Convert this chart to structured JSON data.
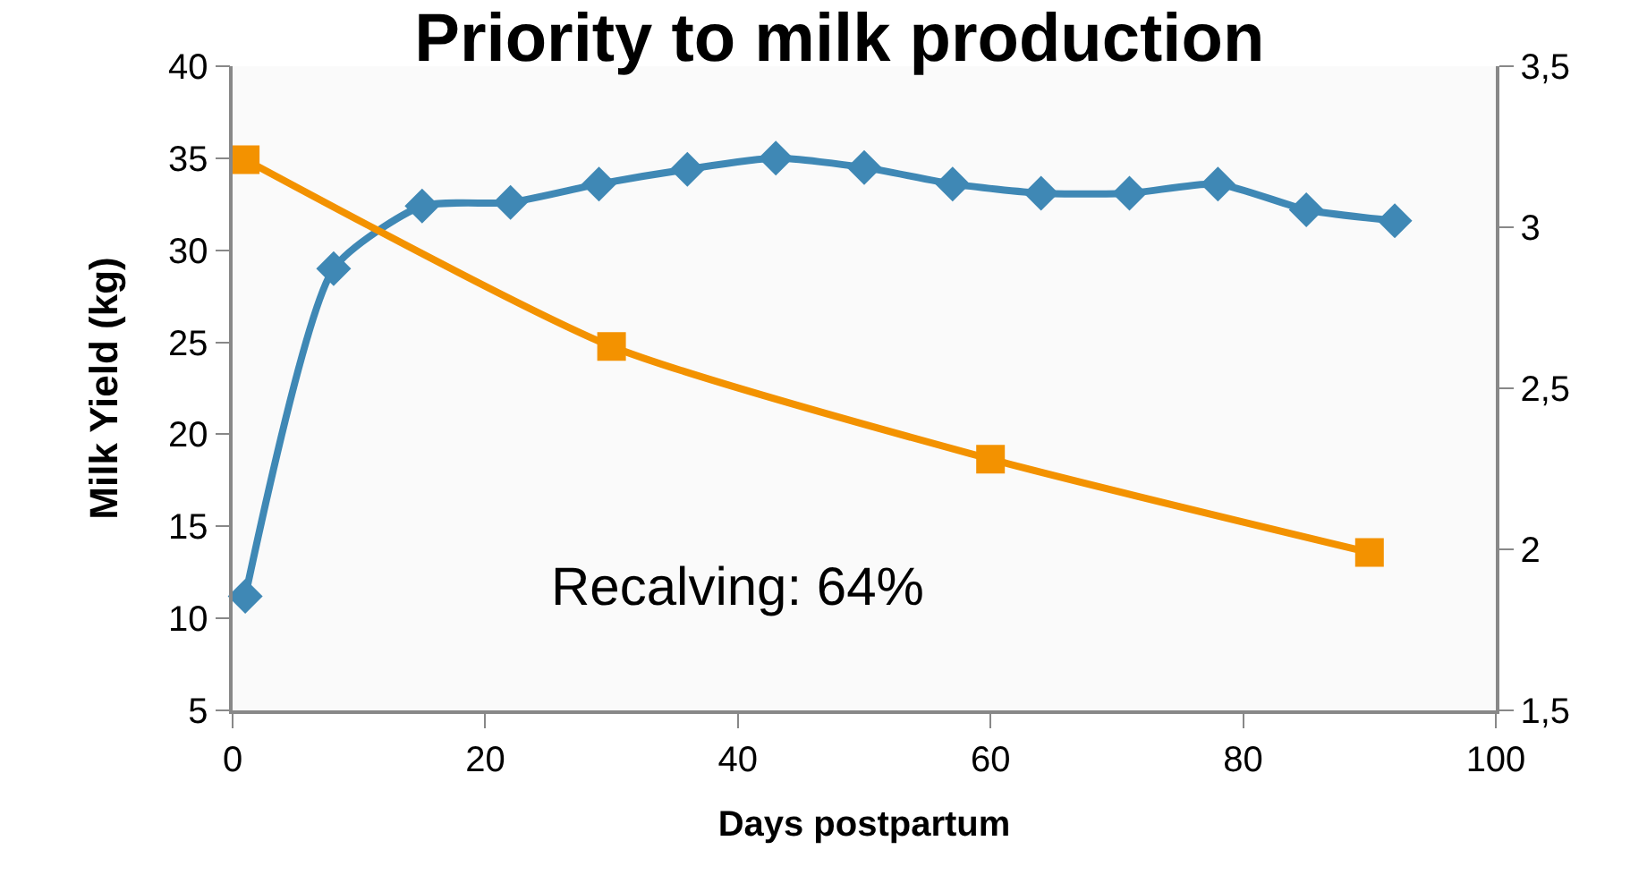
{
  "chart_data": {
    "type": "line",
    "title": "Priority to milk production",
    "xlabel": "Days postpartum",
    "ylabel": "Milk Yield (kg)",
    "annotations": [
      "Recalving: 64%"
    ],
    "series": [
      {
        "color": "#3f88b5",
        "marker": "diamond",
        "x": [
          1,
          8,
          15,
          22,
          29,
          36,
          43,
          50,
          57,
          64,
          71,
          78,
          85,
          92
        ],
        "values": [
          11.2,
          29.0,
          32.4,
          32.6,
          33.6,
          34.4,
          35.0,
          34.5,
          33.6,
          33.1,
          33.1,
          33.6,
          32.2,
          31.6
        ]
      },
      {
        "color": "#f39200",
        "marker": "square",
        "axis": "y2",
        "x": [
          1,
          30,
          60,
          90
        ],
        "values": [
          3.21,
          2.63,
          2.28,
          1.99
        ]
      }
    ],
    "xlim": [
      0,
      100
    ],
    "xticks": [
      0,
      20,
      40,
      60,
      80,
      100
    ],
    "ylim": [
      5,
      40
    ],
    "yticks": [
      5,
      10,
      15,
      20,
      25,
      30,
      35,
      40
    ],
    "y2lim": [
      1.5,
      3.5
    ],
    "y2ticks": [
      {
        "value": 1.5,
        "label": "1,5"
      },
      {
        "value": 2,
        "label": "2"
      },
      {
        "value": 2.5,
        "label": "2,5"
      },
      {
        "value": 3,
        "label": "3"
      },
      {
        "value": 3.5,
        "label": "3,5"
      }
    ],
    "tick_labels": true
  }
}
